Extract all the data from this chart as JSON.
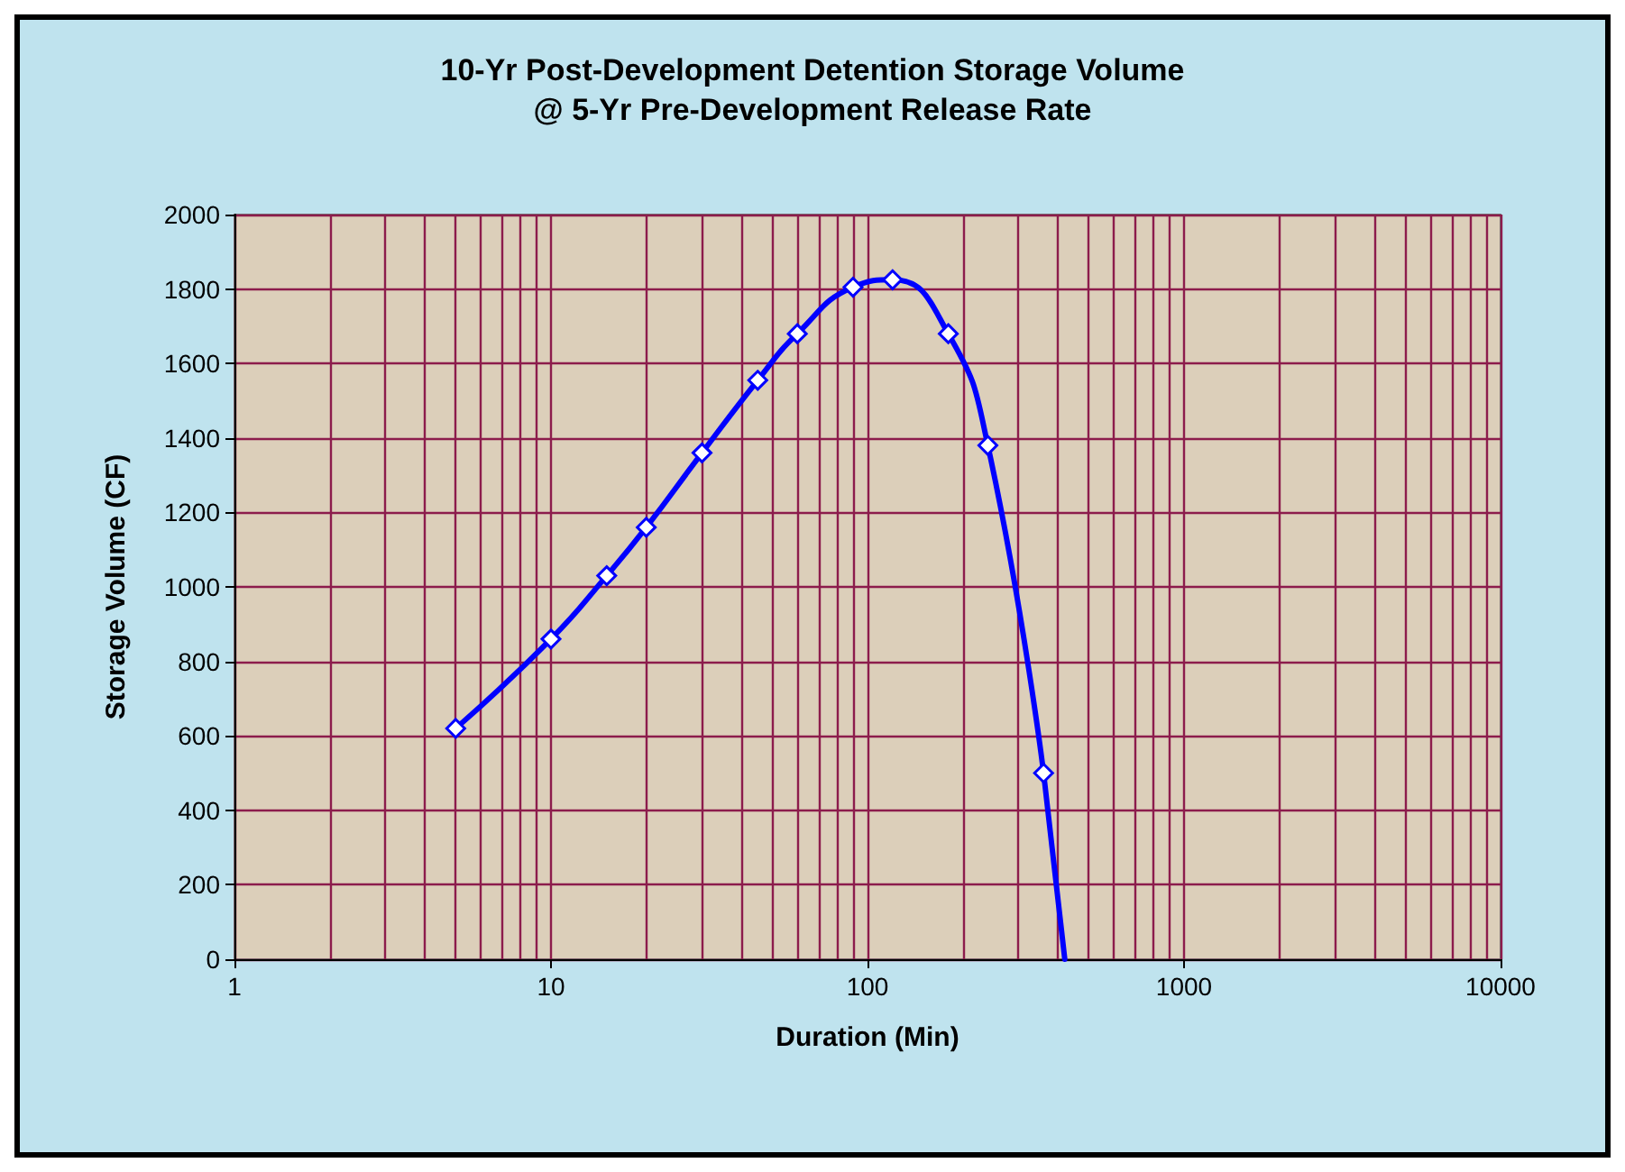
{
  "chart_data": {
    "type": "line",
    "title": "10-Yr Post-Development Detention Storage Volume\n@ 5-Yr Pre-Development Release Rate",
    "xlabel": "Duration (Min)",
    "ylabel": "Storage Volume (CF)",
    "log": "x",
    "grid": true,
    "marker": "diamond",
    "line_style": "solid",
    "xlim": [
      1,
      10000
    ],
    "xticks": [
      1,
      10,
      100,
      1000,
      10000
    ],
    "ylim": [
      0,
      2000
    ],
    "yticks": [
      0,
      200,
      400,
      600,
      800,
      1000,
      1200,
      1400,
      1600,
      1800,
      2000
    ],
    "series": [
      {
        "color": "#0000ff",
        "x": [
          5,
          10,
          15,
          20,
          30,
          45,
          60,
          90,
          120,
          180,
          240,
          360
        ],
        "values": [
          620,
          860,
          1030,
          1160,
          1360,
          1555,
          1680,
          1805,
          1825,
          1680,
          1380,
          500
        ]
      },
      {
        "color": "#0000ff",
        "marker": "none",
        "x": [
          360,
          420
        ],
        "values": [
          500,
          0
        ]
      }
    ]
  }
}
